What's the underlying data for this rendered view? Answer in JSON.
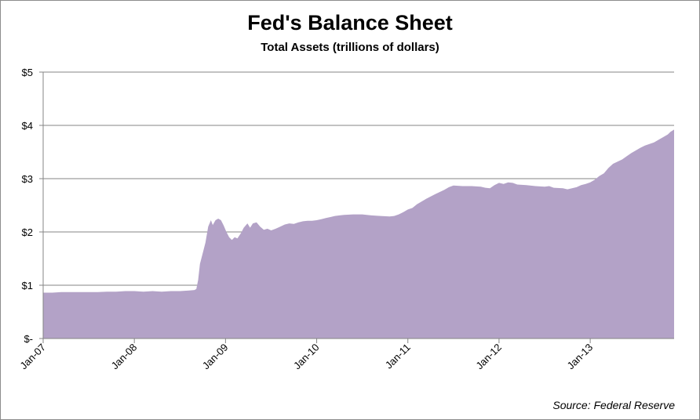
{
  "chart_data": {
    "type": "area",
    "title": "Fed's Balance Sheet",
    "subtitle": "Total Assets (trillions of dollars)",
    "source": "Source:  Federal Reserve",
    "color": "#b3a2c7",
    "grid_color": "#868686",
    "ylim": [
      0,
      5
    ],
    "y_ticks": [
      {
        "value": 0,
        "label": "$-"
      },
      {
        "value": 1,
        "label": "$1"
      },
      {
        "value": 2,
        "label": "$2"
      },
      {
        "value": 3,
        "label": "$3"
      },
      {
        "value": 4,
        "label": "$4"
      },
      {
        "value": 5,
        "label": "$5"
      }
    ],
    "xlim": [
      2007.0,
      2013.92
    ],
    "x_ticks": [
      {
        "value": 2007,
        "label": "Jan-07"
      },
      {
        "value": 2008,
        "label": "Jan-08"
      },
      {
        "value": 2009,
        "label": "Jan-09"
      },
      {
        "value": 2010,
        "label": "Jan-10"
      },
      {
        "value": 2011,
        "label": "Jan-11"
      },
      {
        "value": 2012,
        "label": "Jan-12"
      },
      {
        "value": 2013,
        "label": "Jan-13"
      }
    ],
    "grid": true,
    "series": [
      {
        "values": [
          [
            2007.0,
            0.86
          ],
          [
            2007.1,
            0.86
          ],
          [
            2007.2,
            0.87
          ],
          [
            2007.3,
            0.87
          ],
          [
            2007.4,
            0.87
          ],
          [
            2007.5,
            0.87
          ],
          [
            2007.6,
            0.87
          ],
          [
            2007.7,
            0.88
          ],
          [
            2007.8,
            0.88
          ],
          [
            2007.9,
            0.89
          ],
          [
            2008.0,
            0.89
          ],
          [
            2008.1,
            0.88
          ],
          [
            2008.2,
            0.89
          ],
          [
            2008.3,
            0.88
          ],
          [
            2008.4,
            0.89
          ],
          [
            2008.5,
            0.89
          ],
          [
            2008.6,
            0.9
          ],
          [
            2008.66,
            0.91
          ],
          [
            2008.68,
            0.93
          ],
          [
            2008.7,
            1.1
          ],
          [
            2008.72,
            1.4
          ],
          [
            2008.75,
            1.6
          ],
          [
            2008.78,
            1.8
          ],
          [
            2008.81,
            2.1
          ],
          [
            2008.84,
            2.22
          ],
          [
            2008.86,
            2.13
          ],
          [
            2008.89,
            2.22
          ],
          [
            2008.92,
            2.25
          ],
          [
            2008.95,
            2.22
          ],
          [
            2008.98,
            2.12
          ],
          [
            2009.01,
            2.0
          ],
          [
            2009.04,
            1.9
          ],
          [
            2009.07,
            1.85
          ],
          [
            2009.1,
            1.9
          ],
          [
            2009.13,
            1.88
          ],
          [
            2009.17,
            1.98
          ],
          [
            2009.2,
            2.08
          ],
          [
            2009.24,
            2.16
          ],
          [
            2009.27,
            2.08
          ],
          [
            2009.3,
            2.16
          ],
          [
            2009.34,
            2.18
          ],
          [
            2009.38,
            2.1
          ],
          [
            2009.42,
            2.04
          ],
          [
            2009.46,
            2.06
          ],
          [
            2009.5,
            2.03
          ],
          [
            2009.55,
            2.06
          ],
          [
            2009.6,
            2.1
          ],
          [
            2009.65,
            2.14
          ],
          [
            2009.7,
            2.16
          ],
          [
            2009.75,
            2.15
          ],
          [
            2009.8,
            2.18
          ],
          [
            2009.85,
            2.2
          ],
          [
            2009.9,
            2.21
          ],
          [
            2009.95,
            2.21
          ],
          [
            2010.0,
            2.22
          ],
          [
            2010.05,
            2.24
          ],
          [
            2010.1,
            2.26
          ],
          [
            2010.15,
            2.28
          ],
          [
            2010.2,
            2.3
          ],
          [
            2010.25,
            2.31
          ],
          [
            2010.3,
            2.32
          ],
          [
            2010.4,
            2.33
          ],
          [
            2010.5,
            2.33
          ],
          [
            2010.6,
            2.31
          ],
          [
            2010.7,
            2.3
          ],
          [
            2010.8,
            2.29
          ],
          [
            2010.85,
            2.3
          ],
          [
            2010.9,
            2.33
          ],
          [
            2010.95,
            2.37
          ],
          [
            2011.0,
            2.42
          ],
          [
            2011.05,
            2.45
          ],
          [
            2011.1,
            2.52
          ],
          [
            2011.2,
            2.62
          ],
          [
            2011.3,
            2.71
          ],
          [
            2011.4,
            2.79
          ],
          [
            2011.45,
            2.84
          ],
          [
            2011.5,
            2.87
          ],
          [
            2011.6,
            2.86
          ],
          [
            2011.7,
            2.86
          ],
          [
            2011.8,
            2.85
          ],
          [
            2011.85,
            2.83
          ],
          [
            2011.9,
            2.82
          ],
          [
            2011.95,
            2.88
          ],
          [
            2012.0,
            2.92
          ],
          [
            2012.05,
            2.9
          ],
          [
            2012.1,
            2.93
          ],
          [
            2012.15,
            2.92
          ],
          [
            2012.2,
            2.89
          ],
          [
            2012.3,
            2.88
          ],
          [
            2012.4,
            2.86
          ],
          [
            2012.5,
            2.85
          ],
          [
            2012.55,
            2.86
          ],
          [
            2012.6,
            2.83
          ],
          [
            2012.7,
            2.82
          ],
          [
            2012.75,
            2.8
          ],
          [
            2012.8,
            2.82
          ],
          [
            2012.85,
            2.84
          ],
          [
            2012.9,
            2.88
          ],
          [
            2012.95,
            2.9
          ],
          [
            2013.0,
            2.93
          ],
          [
            2013.05,
            2.98
          ],
          [
            2013.1,
            3.05
          ],
          [
            2013.15,
            3.1
          ],
          [
            2013.2,
            3.2
          ],
          [
            2013.25,
            3.28
          ],
          [
            2013.3,
            3.32
          ],
          [
            2013.35,
            3.36
          ],
          [
            2013.4,
            3.42
          ],
          [
            2013.45,
            3.48
          ],
          [
            2013.5,
            3.53
          ],
          [
            2013.55,
            3.58
          ],
          [
            2013.6,
            3.62
          ],
          [
            2013.65,
            3.65
          ],
          [
            2013.7,
            3.68
          ],
          [
            2013.75,
            3.73
          ],
          [
            2013.8,
            3.78
          ],
          [
            2013.85,
            3.83
          ],
          [
            2013.88,
            3.88
          ],
          [
            2013.92,
            3.92
          ]
        ]
      }
    ]
  }
}
